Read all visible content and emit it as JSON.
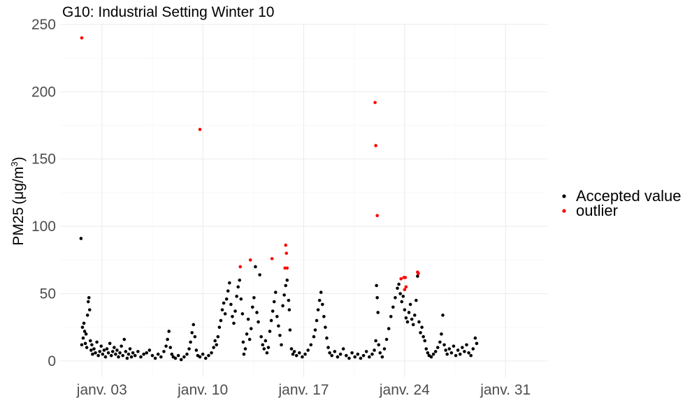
{
  "chart_data": {
    "type": "scatter",
    "title": "G10: Industrial Setting Winter 10",
    "xlabel": "",
    "ylabel": "PM25 (μg/m3)",
    "ylabel_parts": {
      "main": "PM25",
      "open": "(",
      "unit": "μg/m",
      "sup": "3",
      "close": ")"
    },
    "x_unit": "days since 2022-01-01 00:00",
    "xlim": [
      -0.9,
      32.9
    ],
    "ylim": [
      -12,
      250
    ],
    "x_ticks": [
      {
        "value": 2,
        "label": "janv. 03"
      },
      {
        "value": 9,
        "label": "janv. 10"
      },
      {
        "value": 16,
        "label": "janv. 17"
      },
      {
        "value": 23,
        "label": "janv. 24"
      },
      {
        "value": 30,
        "label": "janv. 31"
      }
    ],
    "y_ticks": [
      0,
      50,
      100,
      150,
      200,
      250
    ],
    "grid": true,
    "legend_position": "right",
    "series": [
      {
        "name": "Accepted value",
        "color": "#000000",
        "points": [
          [
            0.55,
            91
          ],
          [
            0.6,
            12
          ],
          [
            0.65,
            25
          ],
          [
            0.7,
            17
          ],
          [
            0.75,
            28
          ],
          [
            0.8,
            22
          ],
          [
            0.85,
            13
          ],
          [
            0.9,
            20
          ],
          [
            0.95,
            10
          ],
          [
            1.0,
            34
          ],
          [
            1.05,
            44
          ],
          [
            1.1,
            47
          ],
          [
            1.15,
            38
          ],
          [
            1.2,
            15
          ],
          [
            1.25,
            8
          ],
          [
            1.3,
            12
          ],
          [
            1.35,
            5
          ],
          [
            1.45,
            9
          ],
          [
            1.55,
            6
          ],
          [
            1.65,
            14
          ],
          [
            1.75,
            4
          ],
          [
            1.85,
            7
          ],
          [
            1.95,
            11
          ],
          [
            2.05,
            5
          ],
          [
            2.15,
            8
          ],
          [
            2.25,
            3
          ],
          [
            2.35,
            9
          ],
          [
            2.45,
            6
          ],
          [
            2.55,
            13
          ],
          [
            2.65,
            4
          ],
          [
            2.75,
            7
          ],
          [
            2.85,
            10
          ],
          [
            2.95,
            5
          ],
          [
            3.05,
            8
          ],
          [
            3.15,
            3
          ],
          [
            3.25,
            6
          ],
          [
            3.35,
            11
          ],
          [
            3.45,
            4
          ],
          [
            3.55,
            16
          ],
          [
            3.65,
            7
          ],
          [
            3.75,
            2
          ],
          [
            3.85,
            5
          ],
          [
            3.95,
            9
          ],
          [
            4.05,
            3
          ],
          [
            4.15,
            6
          ],
          [
            4.3,
            4
          ],
          [
            4.5,
            7
          ],
          [
            4.7,
            3
          ],
          [
            4.9,
            5
          ],
          [
            5.1,
            6
          ],
          [
            5.3,
            8
          ],
          [
            5.5,
            4
          ],
          [
            5.7,
            2
          ],
          [
            5.9,
            5
          ],
          [
            6.1,
            3
          ],
          [
            6.3,
            7
          ],
          [
            6.45,
            11
          ],
          [
            6.55,
            16
          ],
          [
            6.65,
            22
          ],
          [
            6.75,
            10
          ],
          [
            6.85,
            5
          ],
          [
            6.95,
            3
          ],
          [
            7.1,
            2
          ],
          [
            7.3,
            4
          ],
          [
            7.5,
            1
          ],
          [
            7.7,
            3
          ],
          [
            7.9,
            5
          ],
          [
            8.05,
            9
          ],
          [
            8.15,
            14
          ],
          [
            8.25,
            21
          ],
          [
            8.35,
            27
          ],
          [
            8.45,
            18
          ],
          [
            8.55,
            8
          ],
          [
            8.65,
            4
          ],
          [
            8.8,
            3
          ],
          [
            9.0,
            5
          ],
          [
            9.2,
            2
          ],
          [
            9.4,
            4
          ],
          [
            9.6,
            6
          ],
          [
            9.75,
            10
          ],
          [
            9.85,
            15
          ],
          [
            9.95,
            12
          ],
          [
            10.05,
            18
          ],
          [
            10.15,
            25
          ],
          [
            10.25,
            30
          ],
          [
            10.35,
            38
          ],
          [
            10.45,
            43
          ],
          [
            10.55,
            35
          ],
          [
            10.65,
            46
          ],
          [
            10.75,
            52
          ],
          [
            10.85,
            58
          ],
          [
            10.95,
            42
          ],
          [
            11.05,
            33
          ],
          [
            11.15,
            28
          ],
          [
            11.25,
            37
          ],
          [
            11.35,
            48
          ],
          [
            11.45,
            55
          ],
          [
            11.55,
            60
          ],
          [
            11.65,
            46
          ],
          [
            11.75,
            35
          ],
          [
            11.8,
            14
          ],
          [
            11.85,
            5
          ],
          [
            11.95,
            9
          ],
          [
            12.05,
            20
          ],
          [
            12.15,
            31
          ],
          [
            12.25,
            16
          ],
          [
            12.35,
            24
          ],
          [
            12.45,
            40
          ],
          [
            12.55,
            47
          ],
          [
            12.65,
            70
          ],
          [
            12.75,
            36
          ],
          [
            12.85,
            29
          ],
          [
            12.95,
            64
          ],
          [
            13.05,
            18
          ],
          [
            13.15,
            12
          ],
          [
            13.25,
            9
          ],
          [
            13.35,
            15
          ],
          [
            13.45,
            6
          ],
          [
            13.55,
            10
          ],
          [
            13.65,
            22
          ],
          [
            13.75,
            30
          ],
          [
            13.85,
            37
          ],
          [
            13.95,
            44
          ],
          [
            14.05,
            51
          ],
          [
            14.15,
            33
          ],
          [
            14.25,
            26
          ],
          [
            14.35,
            19
          ],
          [
            14.45,
            12
          ],
          [
            14.55,
            41
          ],
          [
            14.65,
            49
          ],
          [
            14.75,
            56
          ],
          [
            14.85,
            60
          ],
          [
            14.95,
            45
          ],
          [
            15.0,
            38
          ],
          [
            15.05,
            23
          ],
          [
            15.15,
            9
          ],
          [
            15.25,
            5
          ],
          [
            15.35,
            7
          ],
          [
            15.5,
            4
          ],
          [
            15.7,
            6
          ],
          [
            15.9,
            3
          ],
          [
            16.1,
            5
          ],
          [
            16.3,
            8
          ],
          [
            16.5,
            12
          ],
          [
            16.7,
            18
          ],
          [
            16.8,
            23
          ],
          [
            16.9,
            30
          ],
          [
            17.0,
            38
          ],
          [
            17.1,
            45
          ],
          [
            17.2,
            51
          ],
          [
            17.3,
            42
          ],
          [
            17.4,
            33
          ],
          [
            17.5,
            25
          ],
          [
            17.6,
            17
          ],
          [
            17.7,
            10
          ],
          [
            17.8,
            6
          ],
          [
            17.95,
            4
          ],
          [
            18.15,
            7
          ],
          [
            18.35,
            3
          ],
          [
            18.55,
            5
          ],
          [
            18.75,
            9
          ],
          [
            18.95,
            4
          ],
          [
            19.15,
            2
          ],
          [
            19.35,
            6
          ],
          [
            19.55,
            3
          ],
          [
            19.75,
            5
          ],
          [
            19.95,
            2
          ],
          [
            20.15,
            4
          ],
          [
            20.35,
            7
          ],
          [
            20.55,
            3
          ],
          [
            20.75,
            5
          ],
          [
            20.9,
            8
          ],
          [
            21.0,
            15
          ],
          [
            21.05,
            56
          ],
          [
            21.1,
            47
          ],
          [
            21.15,
            36
          ],
          [
            21.2,
            12
          ],
          [
            21.3,
            6
          ],
          [
            21.45,
            3
          ],
          [
            21.6,
            9
          ],
          [
            21.75,
            16
          ],
          [
            21.9,
            24
          ],
          [
            22.05,
            33
          ],
          [
            22.2,
            40
          ],
          [
            22.35,
            47
          ],
          [
            22.5,
            54
          ],
          [
            22.6,
            57
          ],
          [
            22.7,
            50
          ],
          [
            22.8,
            44
          ],
          [
            22.9,
            48
          ],
          [
            23.0,
            38
          ],
          [
            23.1,
            32
          ],
          [
            23.2,
            29
          ],
          [
            23.3,
            36
          ],
          [
            23.4,
            42
          ],
          [
            23.5,
            31
          ],
          [
            23.6,
            27
          ],
          [
            23.7,
            34
          ],
          [
            23.8,
            45
          ],
          [
            23.9,
            63
          ],
          [
            24.0,
            29
          ],
          [
            24.1,
            21
          ],
          [
            24.2,
            25
          ],
          [
            24.3,
            18
          ],
          [
            24.4,
            15
          ],
          [
            24.5,
            9
          ],
          [
            24.6,
            6
          ],
          [
            24.7,
            4
          ],
          [
            24.85,
            3
          ],
          [
            25.0,
            5
          ],
          [
            25.15,
            7
          ],
          [
            25.3,
            10
          ],
          [
            25.45,
            14
          ],
          [
            25.55,
            20
          ],
          [
            25.65,
            34
          ],
          [
            25.75,
            12
          ],
          [
            25.85,
            8
          ],
          [
            25.95,
            5
          ],
          [
            26.1,
            9
          ],
          [
            26.25,
            6
          ],
          [
            26.4,
            11
          ],
          [
            26.55,
            4
          ],
          [
            26.7,
            8
          ],
          [
            26.85,
            5
          ],
          [
            27.0,
            10
          ],
          [
            27.15,
            7
          ],
          [
            27.3,
            12
          ],
          [
            27.45,
            6
          ],
          [
            27.6,
            4
          ],
          [
            27.75,
            9
          ],
          [
            27.9,
            17
          ],
          [
            28.0,
            13
          ]
        ]
      },
      {
        "name": "outlier",
        "color": "#ff0000",
        "points": [
          [
            0.6,
            240
          ],
          [
            8.8,
            172
          ],
          [
            11.6,
            70
          ],
          [
            12.3,
            75
          ],
          [
            13.8,
            76
          ],
          [
            14.75,
            86
          ],
          [
            14.8,
            80
          ],
          [
            14.7,
            69
          ],
          [
            14.85,
            69
          ],
          [
            20.95,
            192
          ],
          [
            21.0,
            160
          ],
          [
            21.1,
            108
          ],
          [
            22.75,
            61
          ],
          [
            22.95,
            62
          ],
          [
            23.05,
            62
          ],
          [
            23.0,
            53
          ],
          [
            23.1,
            55
          ],
          [
            23.9,
            66
          ],
          [
            23.95,
            65
          ]
        ]
      }
    ]
  }
}
